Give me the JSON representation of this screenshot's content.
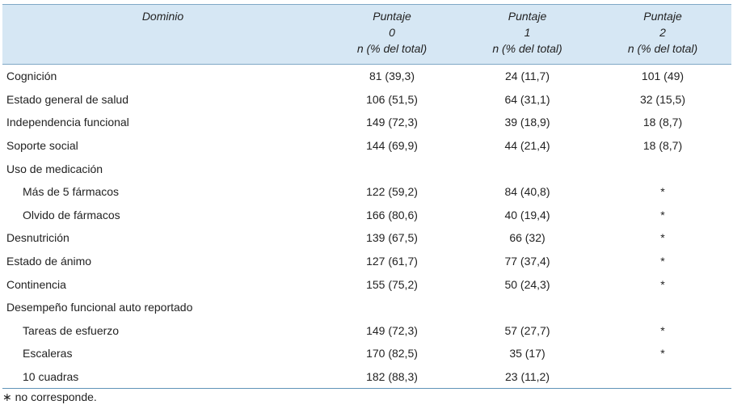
{
  "table": {
    "header": [
      "Dominio",
      [
        "Puntaje",
        "0",
        "n (% del total)"
      ],
      [
        "Puntaje",
        "1",
        "n (% del total)"
      ],
      [
        "Puntaje",
        "2",
        "n (% del total)"
      ]
    ],
    "rows": [
      {
        "label": "Cognición",
        "values": [
          "81 (39,3)",
          "24 (11,7)",
          "101 (49)"
        ]
      },
      {
        "label": "Estado general de salud",
        "values": [
          "106 (51,5)",
          "64 (31,1)",
          "32 (15,5)"
        ]
      },
      {
        "label": "Independencia funcional",
        "values": [
          "149 (72,3)",
          "39 (18,9)",
          "18 (8,7)"
        ]
      },
      {
        "label": "Soporte social",
        "values": [
          "144 (69,9)",
          "44 (21,4)",
          "18 (8,7)"
        ]
      },
      {
        "label": "Uso de medicación"
      },
      {
        "label": "Más de 5 fármacos",
        "indent": true,
        "values": [
          "122 (59,2)",
          "84 (40,8)",
          "*"
        ]
      },
      {
        "label": "Olvido de fármacos",
        "indent": true,
        "values": [
          "166 (80,6)",
          "40 (19,4)",
          "*"
        ]
      },
      {
        "label": "Desnutrición",
        "values": [
          "139 (67,5)",
          "66 (32)",
          "*"
        ]
      },
      {
        "label": "Estado de ánimo",
        "values": [
          "127 (61,7)",
          "77 (37,4)",
          "*"
        ]
      },
      {
        "label": "Continencia",
        "values": [
          "155 (75,2)",
          "50 (24,3)",
          "*"
        ]
      },
      {
        "label": "Desempeño funcional auto reportado"
      },
      {
        "label": "Tareas de esfuerzo",
        "indent": true,
        "values": [
          "149 (72,3)",
          "57 (27,7)",
          "*"
        ]
      },
      {
        "label": "Escaleras",
        "indent": true,
        "values": [
          "170 (82,5)",
          "35 (17)",
          "*"
        ]
      },
      {
        "label": "10 cuadras",
        "indent": true,
        "values": [
          "182 (88,3)",
          "23 (11,2)"
        ]
      }
    ]
  },
  "footnote": "∗ no corresponde."
}
